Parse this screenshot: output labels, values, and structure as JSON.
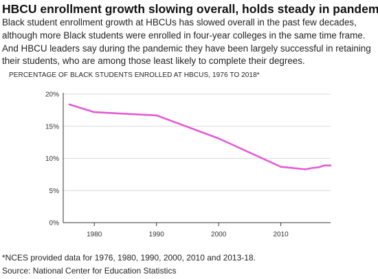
{
  "headline": "HBCU enrollment growth slowing overall, holds steady in pandemic",
  "dek": "Black student enrollment growth at HBCUs has slowed overall in the past few decades, although more Black students were enrolled in four-year colleges in the same time frame. And HBCU leaders say during the pandemic they have been largely successful in retaining their students, who are among those least likely to complete their degrees.",
  "footnote": "*NCES provided data for 1976, 1980, 1990, 2000, 2010 and 2013-18.",
  "source": "Source: National Center for Education Statistics",
  "colors": {
    "line": "#e35ad6",
    "grid": "#cccccc",
    "axis": "#333333"
  },
  "chart_data": {
    "type": "line",
    "title": "PERCENTAGE OF BLACK STUDENTS ENROLLED AT HBCUS, 1976 TO 2018*",
    "xlabel": "",
    "ylabel": "",
    "x": [
      1976,
      1980,
      1990,
      2000,
      2010,
      2013,
      2014,
      2015,
      2016,
      2017,
      2018
    ],
    "series": [
      {
        "values": [
          18.4,
          17.2,
          16.7,
          13.1,
          8.7,
          8.4,
          8.3,
          8.5,
          8.6,
          8.9,
          8.9
        ]
      }
    ],
    "xlim": [
      1975,
      2018
    ],
    "ylim": [
      0,
      20
    ],
    "x_ticks": [
      1980,
      1990,
      2000,
      2010
    ],
    "x_tick_labels": [
      "1980",
      "1990",
      "2000",
      "2010"
    ],
    "y_ticks": [
      0,
      5,
      10,
      15,
      20
    ],
    "y_tick_labels": [
      "0%",
      "5%",
      "10%",
      "15%",
      "20%"
    ],
    "grid": "horizontal"
  }
}
